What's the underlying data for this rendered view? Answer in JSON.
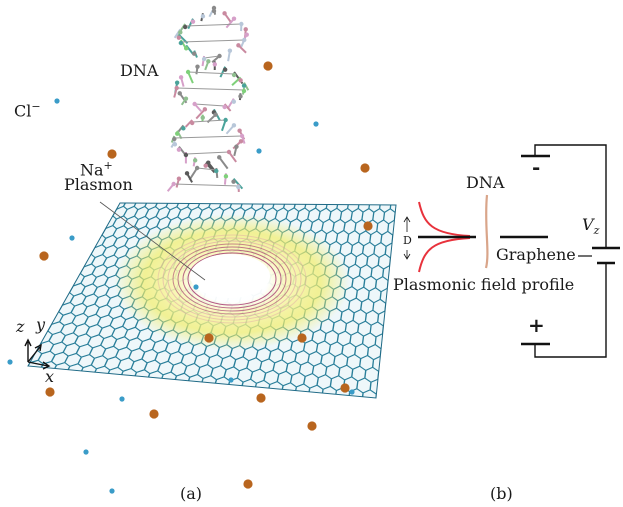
{
  "panel_a": {
    "dna_label": "DNA",
    "cl_label": "Cl",
    "cl_sup": "−",
    "na_label": "Na",
    "na_sup": "+",
    "plasmon_label": "Plasmon",
    "axis_z": "z",
    "axis_y": "y",
    "axis_x": "x",
    "caption": "(a)"
  },
  "panel_b": {
    "dna_label": "DNA",
    "d_label": "D",
    "graphene_label": "Graphene",
    "profile_label": "Plasmonic field profile",
    "minus_sign": "-",
    "plus_sign": "+",
    "voltage_label": "V",
    "voltage_sub": "z",
    "caption": "(b)"
  },
  "colors": {
    "graphene_lattice": "#2a7f9a",
    "sodium_ion": "#b8651e",
    "chloride_ion": "#3a9cc8",
    "plasmon_glow": "#f2ee6a",
    "plasmon_ring": "#a0306a",
    "field_profile": "#e8323c",
    "dna_strand_b": "#d9a58a"
  }
}
